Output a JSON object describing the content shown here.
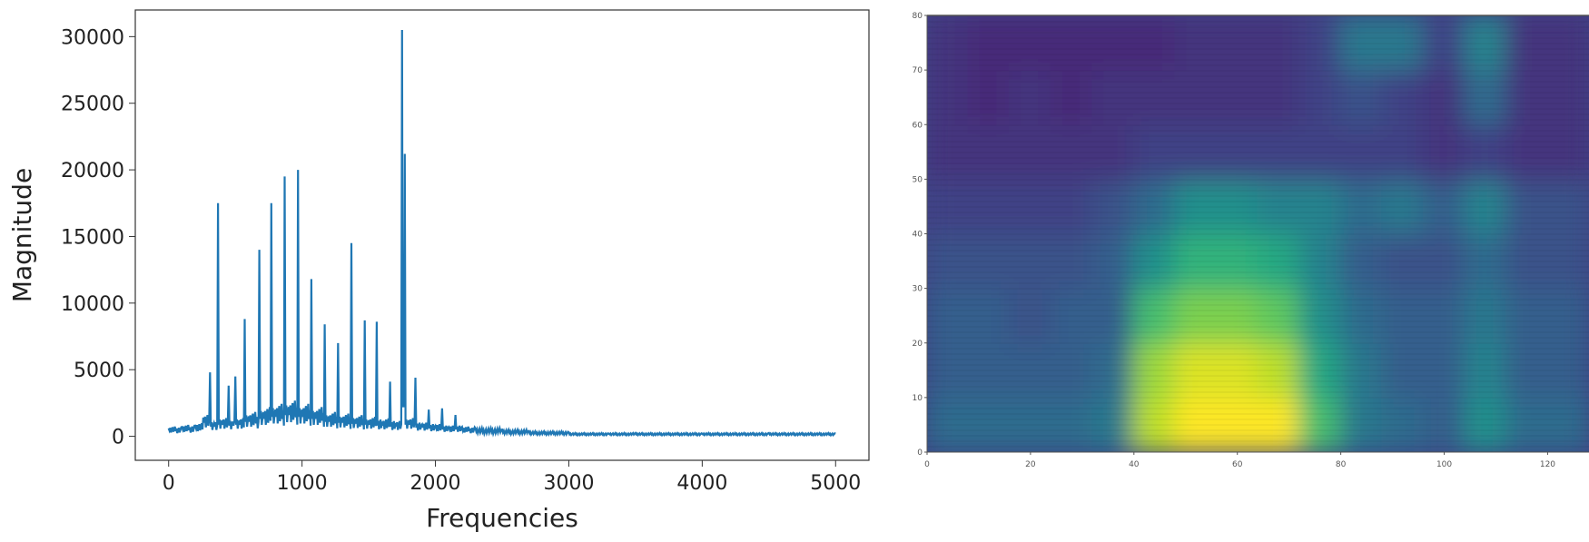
{
  "chart_data": [
    {
      "type": "line",
      "title": "",
      "xlabel": "Frequencies",
      "ylabel": "Magnitude",
      "xlim": [
        -250,
        5250
      ],
      "ylim": [
        -1800,
        32000
      ],
      "xticks": [
        0,
        1000,
        2000,
        3000,
        4000,
        5000
      ],
      "yticks": [
        0,
        5000,
        10000,
        15000,
        20000,
        25000,
        30000
      ],
      "grid": false,
      "color": "#1f77b4",
      "series": [
        {
          "x": [
            0,
            100,
            200,
            260,
            310,
            340,
            370,
            400,
            450,
            480,
            500,
            530,
            570,
            600,
            680,
            710,
            770,
            800,
            870,
            900,
            970,
            1000,
            1070,
            1100,
            1170,
            1200,
            1270,
            1300,
            1370,
            1400,
            1470,
            1500,
            1560,
            1600,
            1660,
            1700,
            1750,
            1760,
            1770,
            1800,
            1850,
            1900,
            1950,
            2000,
            2050,
            2100,
            2150,
            2200,
            2300,
            2500,
            2700,
            3000,
            3300,
            3500,
            4000,
            4500,
            5000
          ],
          "y": [
            600,
            700,
            800,
            1400,
            4800,
            1000,
            17500,
            1200,
            3800,
            1100,
            4500,
            1200,
            8800,
            1500,
            14000,
            1800,
            17500,
            2000,
            19500,
            2200,
            20000,
            2000,
            11800,
            1800,
            8400,
            1500,
            7000,
            1400,
            14500,
            1300,
            8700,
            1200,
            8600,
            1100,
            4100,
            1000,
            30500,
            3000,
            21200,
            1200,
            4400,
            900,
            2000,
            800,
            2100,
            700,
            1600,
            700,
            600,
            500,
            400,
            300,
            200,
            250,
            200,
            250,
            200
          ]
        }
      ]
    },
    {
      "type": "heatmap",
      "colormap": "viridis",
      "xlim": [
        0,
        128
      ],
      "ylim": [
        0,
        80
      ],
      "xticks": [
        0,
        20,
        40,
        60,
        80,
        100,
        120
      ],
      "yticks": [
        0,
        10,
        20,
        30,
        40,
        50,
        60,
        70,
        80
      ],
      "x_bin_width": 8,
      "y_bin_width": 10,
      "rows_bottom_to_top": [
        [
          0.35,
          0.35,
          0.35,
          0.35,
          0.4,
          0.9,
          1.0,
          1.0,
          1.0,
          0.7,
          0.4,
          0.35,
          0.3,
          0.5,
          0.35,
          0.35
        ],
        [
          0.3,
          0.3,
          0.3,
          0.3,
          0.35,
          0.85,
          0.95,
          0.95,
          0.9,
          0.6,
          0.4,
          0.3,
          0.3,
          0.45,
          0.3,
          0.3
        ],
        [
          0.3,
          0.3,
          0.25,
          0.3,
          0.3,
          0.7,
          0.8,
          0.8,
          0.75,
          0.5,
          0.35,
          0.3,
          0.3,
          0.4,
          0.3,
          0.3
        ],
        [
          0.25,
          0.25,
          0.25,
          0.25,
          0.3,
          0.5,
          0.65,
          0.65,
          0.6,
          0.45,
          0.3,
          0.25,
          0.25,
          0.35,
          0.25,
          0.25
        ],
        [
          0.2,
          0.2,
          0.2,
          0.2,
          0.25,
          0.35,
          0.5,
          0.5,
          0.45,
          0.45,
          0.35,
          0.4,
          0.3,
          0.45,
          0.25,
          0.25
        ],
        [
          0.15,
          0.15,
          0.15,
          0.15,
          0.15,
          0.2,
          0.2,
          0.2,
          0.2,
          0.2,
          0.2,
          0.2,
          0.15,
          0.2,
          0.15,
          0.15
        ],
        [
          0.15,
          0.12,
          0.15,
          0.12,
          0.15,
          0.15,
          0.15,
          0.15,
          0.15,
          0.2,
          0.25,
          0.2,
          0.15,
          0.35,
          0.15,
          0.15
        ],
        [
          0.15,
          0.12,
          0.12,
          0.12,
          0.12,
          0.12,
          0.15,
          0.15,
          0.15,
          0.2,
          0.4,
          0.4,
          0.2,
          0.45,
          0.15,
          0.15
        ]
      ]
    }
  ]
}
